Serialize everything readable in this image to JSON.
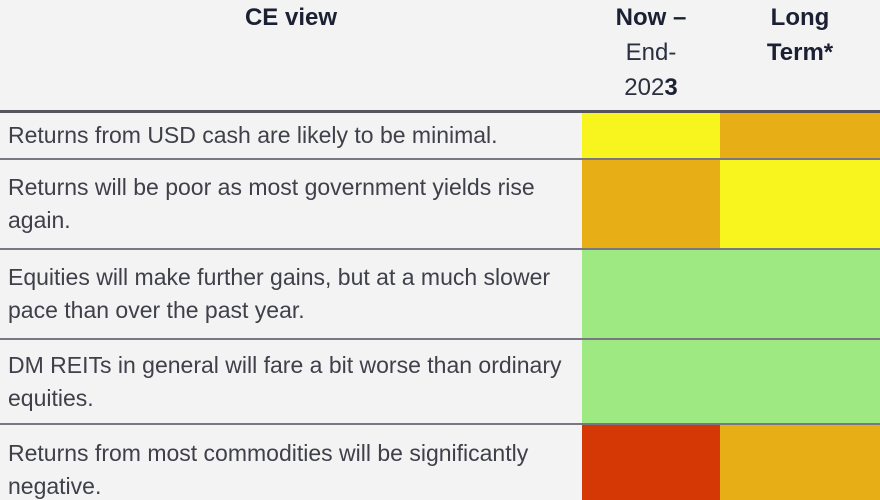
{
  "header": {
    "ce_view": "CE view",
    "now_line1": "Now –",
    "now_line2": "End-",
    "now_line3_regular": "202",
    "now_line3_bold": "3",
    "long_line1": "Long",
    "long_line2": "Term*"
  },
  "table": {
    "colors": {
      "yellow": "#f8f41e",
      "amber": "#e7af15",
      "green": "#9fe982",
      "red": "#d63805"
    },
    "rows": [
      {
        "view": "Returns from USD cash are likely to be minimal.",
        "now": "yellow",
        "long": "amber"
      },
      {
        "view": "Returns will be poor as most government yields rise again.",
        "now": "amber",
        "long": "yellow"
      },
      {
        "view": "Equities will make further gains, but at a much slower pace than over the past year.",
        "now": "green",
        "long": "green"
      },
      {
        "view": "DM REITs in general will fare a bit worse than ordinary equities.",
        "now": "green",
        "long": "green"
      },
      {
        "view": "Returns from most commodities will be significantly negative.",
        "now": "red",
        "long": "amber"
      }
    ]
  }
}
